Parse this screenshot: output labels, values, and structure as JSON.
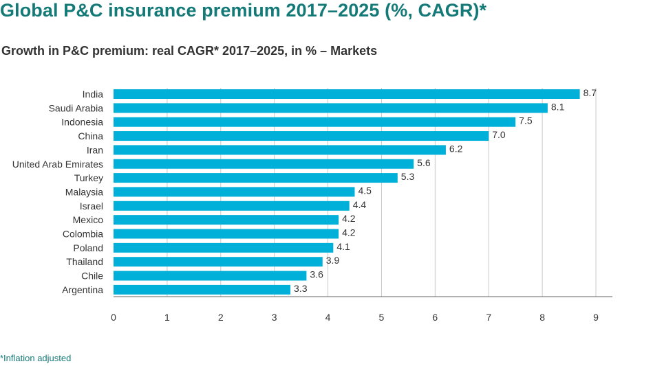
{
  "chart_data": {
    "type": "bar",
    "orientation": "horizontal",
    "title": "Global P&C insurance premium 2017–2025 (%, CAGR)*",
    "subtitle": "Growth in P&C premium: real CAGR* 2017–2025, in % – Markets",
    "footnote": "*Inflation adjusted",
    "categories": [
      "India",
      "Saudi Arabia",
      "Indonesia",
      "China",
      "Iran",
      "United Arab Emirates",
      "Turkey",
      "Malaysia",
      "Israel",
      "Mexico",
      "Colombia",
      "Poland",
      "Thailand",
      "Chile",
      "Argentina"
    ],
    "values": [
      8.7,
      8.1,
      7.5,
      7.0,
      6.2,
      5.6,
      5.3,
      4.5,
      4.4,
      4.2,
      4.2,
      4.1,
      3.9,
      3.6,
      3.3
    ],
    "value_labels": [
      "8.7",
      "8.1",
      "7.5",
      "7.0",
      "6.2",
      "5.6",
      "5.3",
      "4.5",
      "4.4",
      "4.2",
      "4.2",
      "4.1",
      "3.9",
      "3.6",
      "3.3"
    ],
    "xticks": [
      "0",
      "1",
      "2",
      "3",
      "4",
      "5",
      "6",
      "7",
      "8",
      "9"
    ],
    "xlim": [
      0,
      9
    ],
    "xlabel": "",
    "ylabel": "",
    "grid": "vertical",
    "colors": {
      "bar": "#00b0d8",
      "grid": "#c8c8c8",
      "axis": "#666666",
      "title": "#147a78"
    }
  }
}
